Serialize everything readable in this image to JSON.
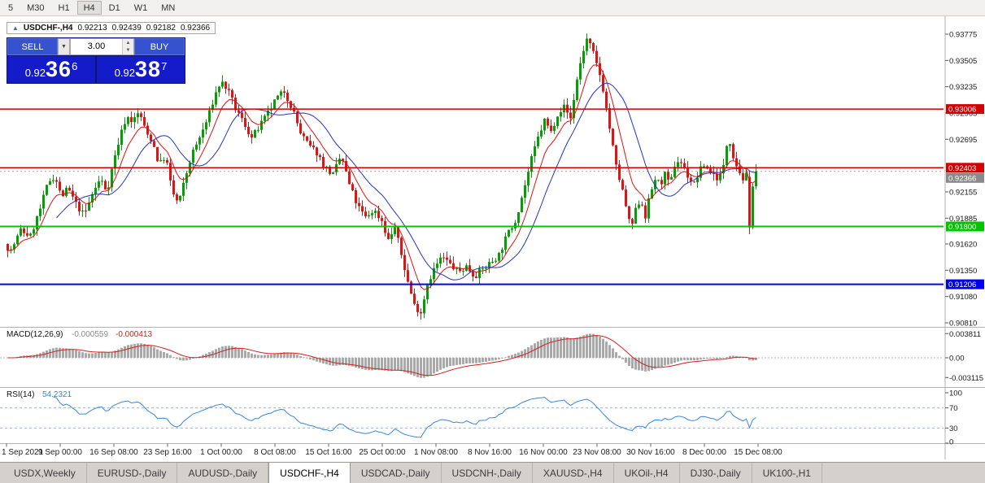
{
  "toolbar": {
    "timeframes": [
      "5",
      "M30",
      "H1",
      "H4",
      "D1",
      "W1",
      "MN"
    ],
    "active_timeframe": "H4"
  },
  "chart_header": {
    "symbol": "USDCHF-,H4",
    "open": "0.92213",
    "high": "0.92439",
    "low": "0.92182",
    "close": "0.92366"
  },
  "trade_widget": {
    "sell_label": "SELL",
    "buy_label": "BUY",
    "volume": "3.00",
    "sell_price": {
      "prefix": "0.92",
      "big": "36",
      "sup": "6"
    },
    "buy_price": {
      "prefix": "0.92",
      "big": "38",
      "sup": "7"
    }
  },
  "chart_data": {
    "type": "candlestick",
    "symbol": "USDCHF-",
    "timeframe": "H4",
    "y_range": {
      "max": 0.93775,
      "min": 0.9081
    },
    "y_axis_ticks": [
      "0.93775",
      "0.93505",
      "0.93235",
      "0.92965",
      "0.92695",
      "0.92155",
      "0.91885",
      "0.91620",
      "0.91350",
      "0.91080",
      "0.90810"
    ],
    "x_labels": [
      "1 Sep 2021",
      "9 Sep 00:00",
      "16 Sep 08:00",
      "23 Sep 16:00",
      "1 Oct 00:00",
      "8 Oct 08:00",
      "15 Oct 16:00",
      "25 Oct 00:00",
      "1 Nov 08:00",
      "8 Nov 16:00",
      "16 Nov 00:00",
      "23 Nov 08:00",
      "30 Nov 16:00",
      "8 Dec 00:00",
      "15 Dec 08:00"
    ],
    "price_markers": [
      {
        "label": "0.93006",
        "price": 0.93006,
        "color": "#d40000",
        "line": true,
        "line_width": 1.5
      },
      {
        "label": "0.92403",
        "price": 0.92403,
        "color": "#d40000",
        "line": true,
        "line_width": 1.5
      },
      {
        "label": "0.92366",
        "price": 0.92366,
        "color": "#8a8a8a",
        "line": false,
        "line_width": 0
      },
      {
        "label": "0.91800",
        "price": 0.918,
        "color": "#00c400",
        "line": true,
        "line_width": 2
      },
      {
        "label": "0.91206",
        "price": 0.91206,
        "color": "#0000ee",
        "line": true,
        "line_width": 2
      }
    ],
    "candle_up_color": "#0a9a0a",
    "candle_down_color": "#d31a1a",
    "price_path": [
      [
        8,
        0.9162
      ],
      [
        16,
        0.9155
      ],
      [
        28,
        0.9176
      ],
      [
        40,
        0.917
      ],
      [
        52,
        0.9198
      ],
      [
        62,
        0.9226
      ],
      [
        70,
        0.9232
      ],
      [
        78,
        0.921
      ],
      [
        86,
        0.9219
      ],
      [
        96,
        0.9203
      ],
      [
        106,
        0.9191
      ],
      [
        116,
        0.9213
      ],
      [
        126,
        0.9229
      ],
      [
        134,
        0.9216
      ],
      [
        142,
        0.9246
      ],
      [
        150,
        0.9272
      ],
      [
        158,
        0.9293
      ],
      [
        166,
        0.9288
      ],
      [
        174,
        0.9298
      ],
      [
        182,
        0.9276
      ],
      [
        190,
        0.9268
      ],
      [
        198,
        0.9243
      ],
      [
        206,
        0.9253
      ],
      [
        214,
        0.9216
      ],
      [
        222,
        0.9203
      ],
      [
        230,
        0.9229
      ],
      [
        238,
        0.9253
      ],
      [
        248,
        0.9271
      ],
      [
        258,
        0.9291
      ],
      [
        266,
        0.9313
      ],
      [
        274,
        0.9329
      ],
      [
        282,
        0.9321
      ],
      [
        292,
        0.9301
      ],
      [
        302,
        0.9287
      ],
      [
        312,
        0.9271
      ],
      [
        322,
        0.9283
      ],
      [
        332,
        0.9296
      ],
      [
        342,
        0.9311
      ],
      [
        352,
        0.9319
      ],
      [
        362,
        0.9301
      ],
      [
        372,
        0.9276
      ],
      [
        382,
        0.9263
      ],
      [
        392,
        0.9256
      ],
      [
        402,
        0.9241
      ],
      [
        412,
        0.9233
      ],
      [
        422,
        0.9253
      ],
      [
        432,
        0.9223
      ],
      [
        442,
        0.9201
      ],
      [
        452,
        0.9189
      ],
      [
        462,
        0.9197
      ],
      [
        472,
        0.9186
      ],
      [
        480,
        0.9166
      ],
      [
        488,
        0.9179
      ],
      [
        496,
        0.9151
      ],
      [
        504,
        0.9123
      ],
      [
        512,
        0.9099
      ],
      [
        520,
        0.9092
      ],
      [
        528,
        0.9121
      ],
      [
        536,
        0.9136
      ],
      [
        546,
        0.9149
      ],
      [
        556,
        0.9141
      ],
      [
        566,
        0.9133
      ],
      [
        576,
        0.9139
      ],
      [
        586,
        0.9129
      ],
      [
        596,
        0.9136
      ],
      [
        606,
        0.9143
      ],
      [
        616,
        0.9151
      ],
      [
        626,
        0.9171
      ],
      [
        636,
        0.9186
      ],
      [
        646,
        0.9216
      ],
      [
        656,
        0.9249
      ],
      [
        664,
        0.9271
      ],
      [
        672,
        0.9289
      ],
      [
        680,
        0.9277
      ],
      [
        688,
        0.9296
      ],
      [
        696,
        0.9303
      ],
      [
        704,
        0.9291
      ],
      [
        712,
        0.9331
      ],
      [
        718,
        0.9356
      ],
      [
        724,
        0.9372
      ],
      [
        730,
        0.9363
      ],
      [
        736,
        0.9346
      ],
      [
        742,
        0.9331
      ],
      [
        748,
        0.9301
      ],
      [
        754,
        0.9271
      ],
      [
        760,
        0.9241
      ],
      [
        766,
        0.9223
      ],
      [
        772,
        0.9201
      ],
      [
        778,
        0.9176
      ],
      [
        784,
        0.9196
      ],
      [
        790,
        0.9209
      ],
      [
        796,
        0.9191
      ],
      [
        802,
        0.9213
      ],
      [
        808,
        0.9229
      ],
      [
        814,
        0.9223
      ],
      [
        820,
        0.9233
      ],
      [
        826,
        0.9221
      ],
      [
        832,
        0.9243
      ],
      [
        838,
        0.9249
      ],
      [
        844,
        0.9239
      ],
      [
        850,
        0.9229
      ],
      [
        856,
        0.9223
      ],
      [
        862,
        0.9236
      ],
      [
        868,
        0.9243
      ],
      [
        874,
        0.9238
      ],
      [
        880,
        0.9233
      ],
      [
        886,
        0.9229
      ],
      [
        892,
        0.9241
      ],
      [
        898,
        0.9275
      ],
      [
        904,
        0.9253
      ],
      [
        910,
        0.9239
      ],
      [
        916,
        0.9229
      ],
      [
        920,
        0.9232
      ],
      [
        932,
        0.9237
      ]
    ],
    "recent_candles": [
      {
        "o": 0.9231,
        "h": 0.9237,
        "l": 0.9172,
        "c": 0.9179
      },
      {
        "o": 0.9179,
        "h": 0.9224,
        "l": 0.9177,
        "c": 0.9221
      },
      {
        "o": 0.92213,
        "h": 0.92439,
        "l": 0.92182,
        "c": 0.92366
      }
    ],
    "indicators": {
      "ma_fast": {
        "color": "#dd1111"
      },
      "ma_slow": {
        "color": "#2233bb"
      },
      "macd": {
        "label": "MACD(12,26,9)",
        "main_value": "-0.000559",
        "signal_value": "-0.000413",
        "axis_labels": [
          "0.003811",
          "0.00",
          "-0.003115"
        ],
        "axis_values": [
          0.003811,
          0,
          -0.003115
        ],
        "histogram_color": "#a9a9a9",
        "signal_color": "#d02020"
      },
      "rsi": {
        "label": "RSI(14)",
        "value": "54.2321",
        "axis_labels": [
          "100",
          "70",
          "30",
          "0"
        ],
        "axis_values": [
          100,
          70,
          30,
          0
        ],
        "levels": [
          70,
          30
        ],
        "line_color": "#3787d8"
      }
    }
  },
  "tabs": {
    "active": "USDCHF-,H4",
    "items": [
      "USDX,Weekly",
      "EURUSD-,Daily",
      "AUDUSD-,Daily",
      "USDCHF-,H4",
      "USDCAD-,Daily",
      "USDCNH-,Daily",
      "XAUUSD-,H4",
      "UKOil-,H4",
      "DJ30-,Daily",
      "UK100-,H1"
    ]
  }
}
